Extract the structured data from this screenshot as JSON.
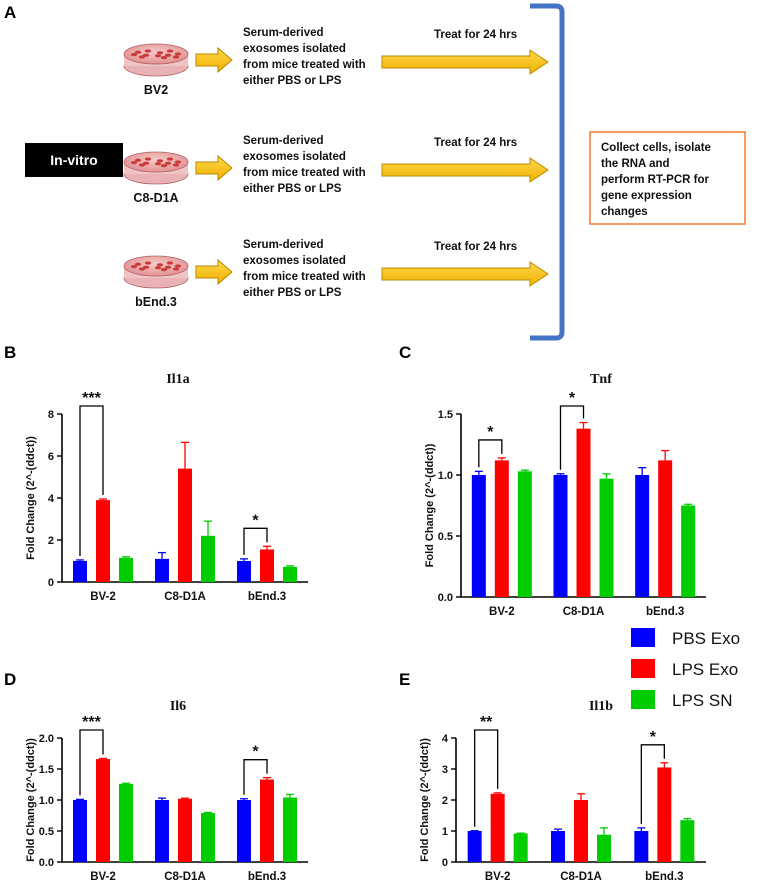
{
  "panel_a": {
    "letter": "A",
    "invitro_label": "In-vitro",
    "rows": [
      {
        "cell": "BV2",
        "exo_lines": [
          "Serum-derived",
          "exosomes isolated",
          "from mice treated with",
          "either PBS or LPS"
        ],
        "treat": "Treat for 24 hrs"
      },
      {
        "cell": "C8-D1A",
        "exo_lines": [
          "Serum-derived",
          "exosomes isolated",
          "from mice treated with",
          "either PBS or LPS"
        ],
        "treat": "Treat for 24 hrs"
      },
      {
        "cell": "bEnd.3",
        "exo_lines": [
          "Serum-derived",
          "exosomes isolated",
          "from mice treated with",
          "either PBS or LPS"
        ],
        "treat": "Treat for 24 hrs"
      }
    ],
    "collect_lines": [
      "Collect cells, isolate",
      "the RNA and",
      "perform RT-PCR for",
      "gene expression",
      "changes"
    ],
    "colors": {
      "arrow": "#f2b800",
      "arrow_edge": "#b88a00",
      "bracket": "#4472c4",
      "collect_border": "#ed7d31",
      "dish": "#e8a0a0"
    }
  },
  "legend": [
    {
      "name": "PBS Exo",
      "color": "#0000ff"
    },
    {
      "name": "LPS Exo",
      "color": "#ff0000"
    },
    {
      "name": "LPS SN",
      "color": "#00cc00"
    }
  ],
  "chart_data": [
    {
      "panel": "B",
      "type": "bar",
      "title": "Il1a",
      "ylabel": "Fold Change (2^-(ddct))",
      "ylim": [
        0,
        8
      ],
      "yticks": [
        "0",
        "2",
        "4",
        "6",
        "8"
      ],
      "categories": [
        "BV-2",
        "C8-D1A",
        "bEnd.3"
      ],
      "series": [
        {
          "name": "PBS Exo",
          "values": [
            1.0,
            1.1,
            1.0
          ],
          "errors": [
            0.05,
            0.3,
            0.1
          ]
        },
        {
          "name": "LPS Exo",
          "values": [
            3.9,
            5.4,
            1.55
          ],
          "errors": [
            0.05,
            1.25,
            0.15
          ]
        },
        {
          "name": "LPS SN",
          "values": [
            1.15,
            2.2,
            0.72
          ],
          "errors": [
            0.05,
            0.7,
            0.05
          ]
        }
      ],
      "significance": [
        {
          "category": 0,
          "label": "***"
        },
        {
          "category": 2,
          "label": "*"
        }
      ]
    },
    {
      "panel": "C",
      "type": "bar",
      "title": "Tnf",
      "ylabel": "Fold Change (2^-(ddct))",
      "ylim": [
        0,
        1.5
      ],
      "yticks": [
        "0.0",
        "0.5",
        "1.0",
        "1.5"
      ],
      "categories": [
        "BV-2",
        "C8-D1A",
        "bEnd.3"
      ],
      "series": [
        {
          "name": "PBS Exo",
          "values": [
            1.0,
            1.0,
            1.0
          ],
          "errors": [
            0.03,
            0.01,
            0.06
          ]
        },
        {
          "name": "LPS Exo",
          "values": [
            1.12,
            1.38,
            1.12
          ],
          "errors": [
            0.02,
            0.05,
            0.08
          ]
        },
        {
          "name": "LPS SN",
          "values": [
            1.03,
            0.97,
            0.75
          ],
          "errors": [
            0.01,
            0.04,
            0.01
          ]
        }
      ],
      "significance": [
        {
          "category": 0,
          "label": "*"
        },
        {
          "category": 1,
          "label": "*"
        }
      ]
    },
    {
      "panel": "D",
      "type": "bar",
      "title": "Il6",
      "ylabel": "Fold Change (2^-(ddct))",
      "ylim": [
        0,
        2.0
      ],
      "yticks": [
        "0.0",
        "0.5",
        "1.0",
        "1.5",
        "2.0"
      ],
      "categories": [
        "BV-2",
        "C8-D1A",
        "bEnd.3"
      ],
      "series": [
        {
          "name": "PBS Exo",
          "values": [
            1.0,
            1.0,
            1.0
          ],
          "errors": [
            0.01,
            0.03,
            0.02
          ]
        },
        {
          "name": "LPS Exo",
          "values": [
            1.66,
            1.02,
            1.33
          ],
          "errors": [
            0.01,
            0.01,
            0.03
          ]
        },
        {
          "name": "LPS SN",
          "values": [
            1.26,
            0.79,
            1.04
          ],
          "errors": [
            0.01,
            0.01,
            0.05
          ]
        }
      ],
      "significance": [
        {
          "category": 0,
          "label": "***"
        },
        {
          "category": 2,
          "label": "*"
        }
      ]
    },
    {
      "panel": "E",
      "type": "bar",
      "title": "Il1b",
      "ylabel": "Fold Change (2^-(ddct))",
      "ylim": [
        0,
        4
      ],
      "yticks": [
        "0",
        "1",
        "2",
        "3",
        "4"
      ],
      "categories": [
        "BV-2",
        "C8-D1A",
        "bEnd.3"
      ],
      "series": [
        {
          "name": "PBS Exo",
          "values": [
            1.0,
            1.0,
            1.0
          ],
          "errors": [
            0.01,
            0.06,
            0.1
          ]
        },
        {
          "name": "LPS Exo",
          "values": [
            2.2,
            2.0,
            3.05
          ],
          "errors": [
            0.03,
            0.2,
            0.15
          ]
        },
        {
          "name": "LPS SN",
          "values": [
            0.92,
            0.88,
            1.35
          ],
          "errors": [
            0.01,
            0.22,
            0.05
          ]
        }
      ],
      "significance": [
        {
          "category": 0,
          "label": "**"
        },
        {
          "category": 2,
          "label": "*"
        }
      ]
    }
  ]
}
